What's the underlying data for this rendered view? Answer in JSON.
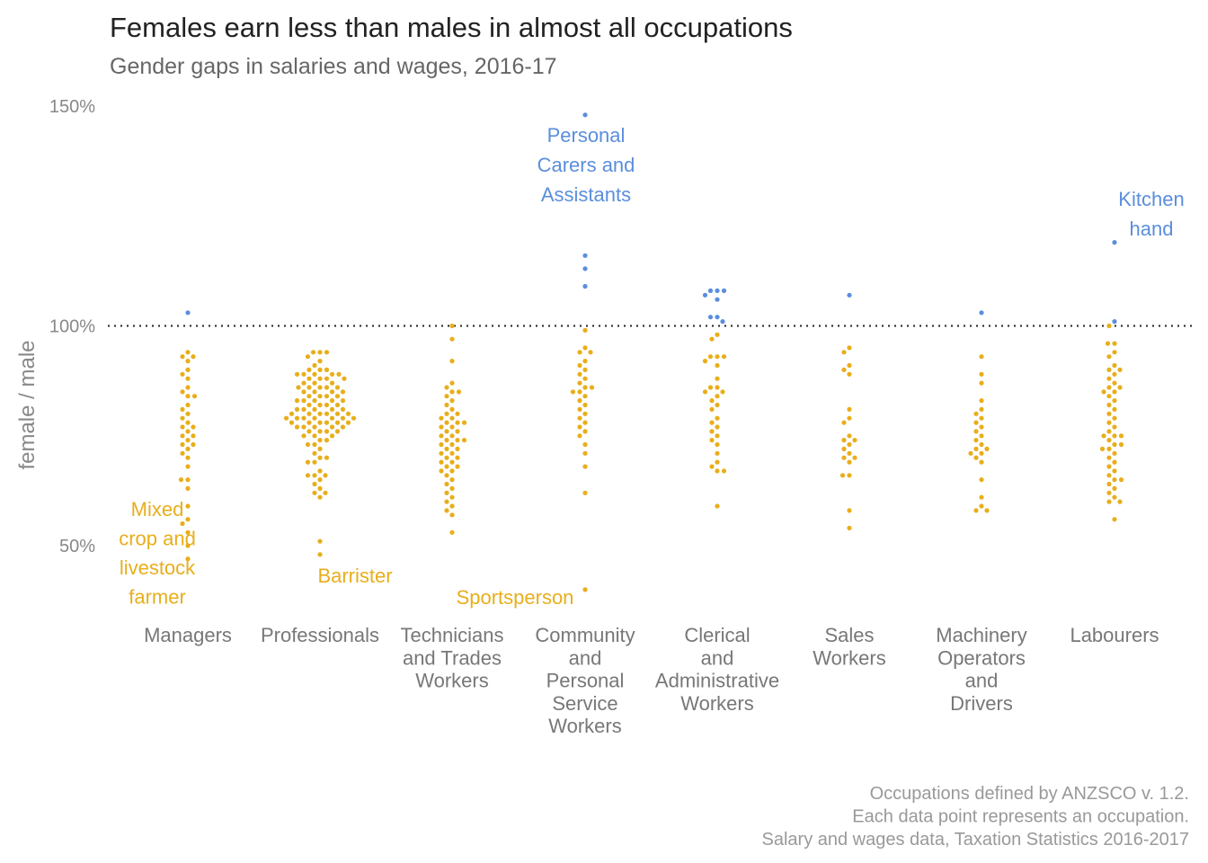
{
  "chart_data": {
    "type": "scatter",
    "title": "Females earn less than males in almost all occupations",
    "subtitle": "Gender gaps in salaries and wages, 2016-17",
    "ylabel": "female / male",
    "ylim": [
      38,
      150
    ],
    "yticks": [
      {
        "value": 50,
        "label": "50%"
      },
      {
        "value": 100,
        "label": "100%"
      },
      {
        "value": 150,
        "label": "150%"
      }
    ],
    "reference_line": 100,
    "colors": {
      "below": "#E8AE1B",
      "above": "#5B8EDC"
    },
    "categories": [
      {
        "name": "Managers",
        "lines": [
          "Managers"
        ]
      },
      {
        "name": "Professionals",
        "lines": [
          "Professionals"
        ]
      },
      {
        "name": "Technicians and Trades Workers",
        "lines": [
          "Technicians",
          "and Trades",
          "Workers"
        ]
      },
      {
        "name": "Community and Personal Service Workers",
        "lines": [
          "Community",
          "and",
          "Personal",
          "Service",
          "Workers"
        ]
      },
      {
        "name": "Clerical and Administrative Workers",
        "lines": [
          "Clerical",
          "and",
          "Administrative",
          "Workers"
        ]
      },
      {
        "name": "Sales Workers",
        "lines": [
          "Sales",
          "Workers"
        ]
      },
      {
        "name": "Machinery Operators and Drivers",
        "lines": [
          "Machinery",
          "Operators",
          "and",
          "Drivers"
        ]
      },
      {
        "name": "Labourers",
        "lines": [
          "Labourers"
        ]
      }
    ],
    "series": [
      {
        "category": "Managers",
        "values": [
          103,
          94,
          93,
          93,
          92,
          90,
          89,
          88,
          86,
          85,
          84,
          84,
          82,
          81,
          80,
          79,
          78,
          77,
          77,
          76,
          75,
          75,
          74,
          73,
          73,
          72,
          71,
          70,
          68,
          65,
          65,
          63,
          59,
          56,
          55,
          53,
          50,
          47
        ]
      },
      {
        "category": "Professionals",
        "values": [
          94,
          94,
          94,
          93,
          92,
          91,
          90,
          90,
          90,
          89,
          89,
          89,
          89,
          89,
          88,
          88,
          88,
          88,
          87,
          87,
          87,
          86,
          86,
          86,
          86,
          86,
          85,
          85,
          85,
          85,
          84,
          84,
          84,
          84,
          83,
          83,
          83,
          83,
          83,
          82,
          82,
          82,
          82,
          81,
          81,
          81,
          81,
          81,
          80,
          80,
          80,
          80,
          80,
          80,
          79,
          79,
          79,
          79,
          79,
          79,
          79,
          78,
          78,
          78,
          78,
          78,
          78,
          77,
          77,
          77,
          77,
          77,
          76,
          76,
          76,
          76,
          75,
          75,
          75,
          74,
          74,
          73,
          73,
          72,
          71,
          70,
          70,
          69,
          69,
          67,
          66,
          66,
          66,
          65,
          64,
          63,
          62,
          62,
          61,
          51,
          48
        ]
      },
      {
        "category": "Technicians and Trades Workers",
        "values": [
          100,
          97,
          92,
          87,
          86,
          85,
          85,
          84,
          83,
          82,
          81,
          80,
          80,
          79,
          79,
          78,
          78,
          78,
          77,
          77,
          76,
          76,
          75,
          75,
          74,
          74,
          74,
          73,
          73,
          72,
          72,
          71,
          71,
          70,
          70,
          69,
          69,
          68,
          68,
          67,
          67,
          66,
          65,
          64,
          63,
          62,
          61,
          60,
          59,
          58,
          57,
          53
        ]
      },
      {
        "category": "Community and Personal Service Workers",
        "values": [
          148,
          116,
          113,
          109,
          99,
          95,
          94,
          94,
          92,
          91,
          90,
          89,
          88,
          87,
          86,
          86,
          85,
          85,
          84,
          83,
          82,
          81,
          80,
          79,
          78,
          77,
          76,
          75,
          73,
          71,
          68,
          62,
          40
        ]
      },
      {
        "category": "Clerical and Administrative Workers",
        "values": [
          108,
          108,
          108,
          107,
          106,
          102,
          102,
          101,
          98,
          97,
          93,
          93,
          93,
          92,
          91,
          88,
          86,
          86,
          85,
          85,
          84,
          83,
          82,
          81,
          79,
          78,
          77,
          76,
          75,
          74,
          73,
          71,
          69,
          68,
          67,
          67,
          59
        ]
      },
      {
        "category": "Sales Workers",
        "values": [
          107,
          95,
          94,
          91,
          90,
          89,
          81,
          79,
          78,
          75,
          74,
          74,
          73,
          72,
          71,
          70,
          70,
          69,
          66,
          66,
          58,
          54
        ]
      },
      {
        "category": "Machinery Operators and Drivers",
        "values": [
          103,
          93,
          89,
          87,
          83,
          81,
          80,
          79,
          78,
          77,
          76,
          75,
          74,
          73,
          72,
          72,
          71,
          71,
          70,
          69,
          65,
          61,
          59,
          58,
          58
        ]
      },
      {
        "category": "Labourers",
        "values": [
          119,
          101,
          100,
          96,
          96,
          94,
          93,
          91,
          90,
          90,
          89,
          88,
          87,
          86,
          86,
          85,
          85,
          84,
          83,
          82,
          81,
          80,
          79,
          78,
          77,
          76,
          75,
          75,
          75,
          74,
          73,
          73,
          72,
          72,
          71,
          70,
          69,
          68,
          67,
          66,
          65,
          65,
          64,
          63,
          62,
          61,
          60,
          60,
          56
        ]
      }
    ],
    "annotations": [
      {
        "text": [
          "Mixed",
          "crop and",
          "livestock",
          "farmer"
        ],
        "category": "Managers",
        "y": 47,
        "color": "#E8AE1B"
      },
      {
        "text": [
          "Barrister"
        ],
        "category": "Professionals",
        "y": 48,
        "color": "#E8AE1B"
      },
      {
        "text": [
          "Sportsperson"
        ],
        "category": "Community and Personal Service Workers",
        "y": 40,
        "color": "#E8AE1B"
      },
      {
        "text": [
          "Personal",
          "Carers and",
          "Assistants"
        ],
        "category": "Community and Personal Service Workers",
        "y": 148,
        "color": "#5B8EDC"
      },
      {
        "text": [
          "Kitchen",
          "hand"
        ],
        "category": "Labourers",
        "y": 119,
        "color": "#5B8EDC"
      }
    ],
    "caption": [
      "Occupations defined by ANZSCO v. 1.2.",
      "Each data point represents an occupation.",
      "Salary and wages data, Taxation Statistics 2016-2017"
    ],
    "grid": false,
    "legend": "none"
  }
}
